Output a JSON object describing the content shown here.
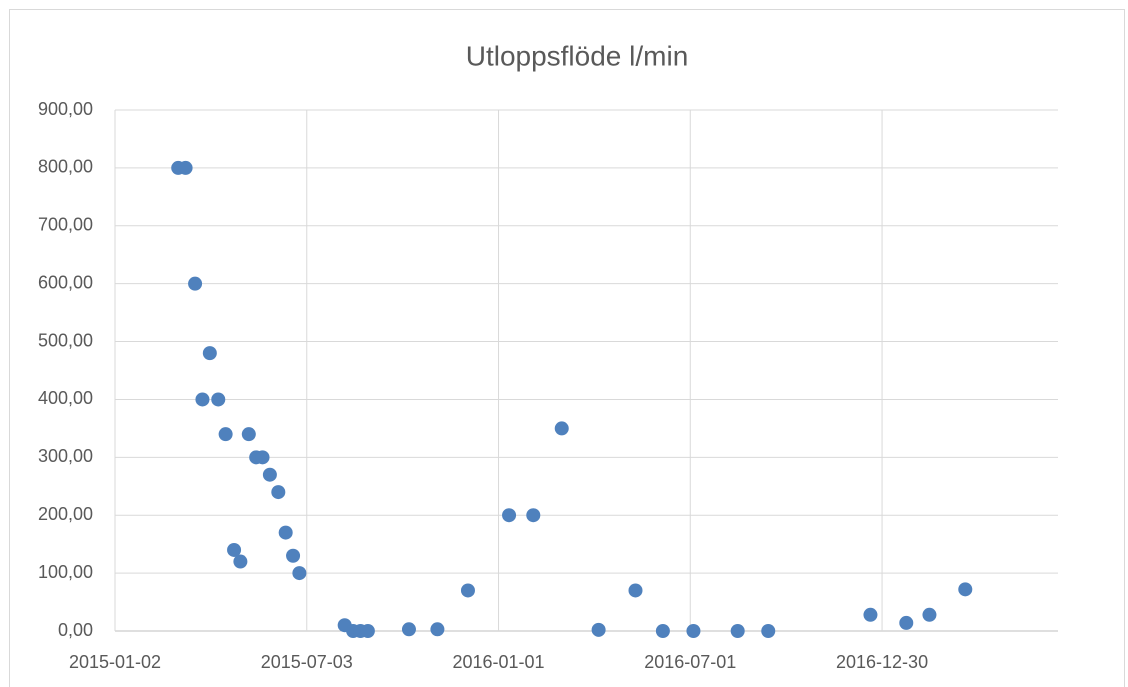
{
  "chart_data": {
    "type": "scatter",
    "title": "Utloppsflöde l/min",
    "x": [
      "2015-03-03",
      "2015-03-10",
      "2015-03-19",
      "2015-03-26",
      "2015-04-02",
      "2015-04-10",
      "2015-04-17",
      "2015-04-25",
      "2015-05-01",
      "2015-05-09",
      "2015-05-16",
      "2015-05-22",
      "2015-05-29",
      "2015-06-06",
      "2015-06-13",
      "2015-06-20",
      "2015-06-26",
      "2015-08-08",
      "2015-08-16",
      "2015-08-23",
      "2015-08-30",
      "2015-10-08",
      "2015-11-04",
      "2015-12-03",
      "2016-01-11",
      "2016-02-03",
      "2016-03-01",
      "2016-04-05",
      "2016-05-10",
      "2016-06-05",
      "2016-07-04",
      "2016-08-15",
      "2016-09-13",
      "2016-12-19",
      "2017-01-22",
      "2017-02-13",
      "2017-03-19"
    ],
    "series": [
      {
        "name": "Utloppsflöde l/min",
        "color": "#4f81bd",
        "values": [
          800,
          800,
          600,
          400,
          480,
          400,
          340,
          140,
          120,
          340,
          300,
          300,
          270,
          240,
          170,
          130,
          100,
          10,
          0,
          0,
          0,
          3,
          3,
          70,
          200,
          200,
          350,
          2,
          70,
          0,
          0,
          0,
          0,
          28,
          14,
          28,
          72
        ]
      }
    ],
    "xlim": [
      "2015-01-02",
      "2017-06-15"
    ],
    "xticks": [
      "2015-01-02",
      "2015-07-03",
      "2016-01-01",
      "2016-07-01",
      "2016-12-30"
    ],
    "ylim": [
      0,
      900
    ],
    "yticks": [
      {
        "value": 0,
        "label": "0,00"
      },
      {
        "value": 100,
        "label": "100,00"
      },
      {
        "value": 200,
        "label": "200,00"
      },
      {
        "value": 300,
        "label": "300,00"
      },
      {
        "value": 400,
        "label": "400,00"
      },
      {
        "value": 500,
        "label": "500,00"
      },
      {
        "value": 600,
        "label": "600,00"
      },
      {
        "value": 700,
        "label": "700,00"
      },
      {
        "value": 800,
        "label": "800,00"
      },
      {
        "value": 900,
        "label": "900,00"
      }
    ],
    "grid": true
  }
}
